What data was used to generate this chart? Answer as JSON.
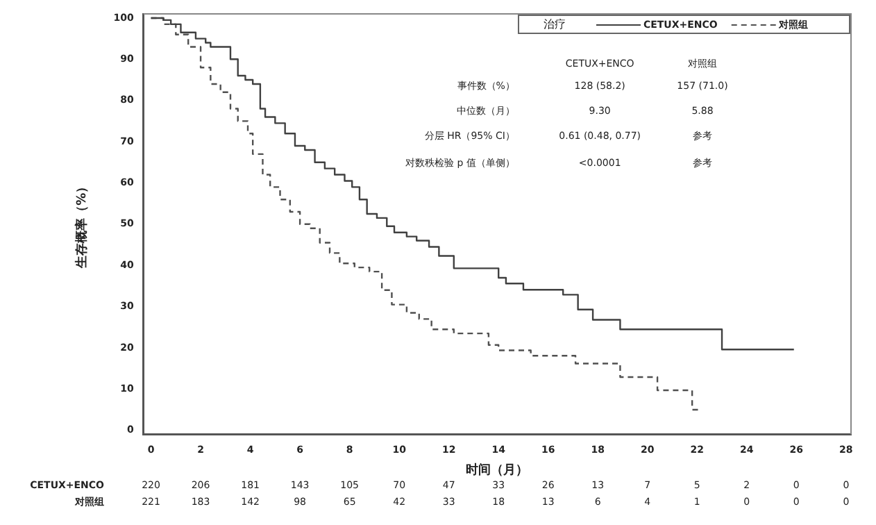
{
  "chart_data": {
    "type": "step",
    "xlabel": "时间（月）",
    "ylabel": "生存概率（%）",
    "legend_title": "治疗",
    "legend": "top right",
    "grid": false,
    "xlim": [
      -0.3,
      28.2
    ],
    "xticks": [
      0,
      2,
      4,
      6,
      8,
      10,
      12,
      14,
      16,
      18,
      20,
      22,
      24,
      26,
      28
    ],
    "ylim": [
      -1,
      101
    ],
    "yticks": [
      0,
      10,
      20,
      30,
      40,
      50,
      60,
      70,
      80,
      90,
      100
    ],
    "series": [
      {
        "name": "CETUX+ENCO",
        "color": "#404040",
        "line_style": "solid",
        "x": [
          0,
          0.5,
          0.8,
          1.2,
          1.8,
          2.2,
          2.4,
          3.2,
          3.5,
          3.8,
          4.1,
          4.4,
          4.6,
          5.0,
          5.4,
          5.8,
          6.2,
          6.6,
          7.0,
          7.4,
          7.8,
          8.1,
          8.4,
          8.7,
          9.1,
          9.5,
          9.8,
          10.3,
          10.7,
          11.2,
          11.6,
          12.2,
          14.0,
          14.3,
          15.0,
          16.6,
          17.2,
          17.5,
          17.8,
          18.9,
          23.0,
          25.9
        ],
        "values": [
          100,
          99.5,
          98.5,
          96.5,
          95,
          94,
          93,
          90,
          86,
          85,
          84,
          78,
          76,
          74.5,
          72,
          69,
          68,
          65,
          63.5,
          62,
          60.5,
          59,
          56,
          52.5,
          51.5,
          49.5,
          48,
          47,
          46,
          44.5,
          42.3,
          39.3,
          37,
          35.6,
          34.1,
          32.9,
          29.3,
          29.3,
          26.8,
          24.5,
          19.6,
          19.6
        ]
      },
      {
        "name": "对照组",
        "color": "#505050",
        "line_style": "dashed",
        "x": [
          0,
          0.5,
          1.0,
          1.5,
          2.0,
          2.4,
          2.8,
          3.2,
          3.5,
          3.9,
          4.1,
          4.5,
          4.8,
          5.2,
          5.6,
          6.0,
          6.4,
          6.8,
          7.2,
          7.6,
          8.2,
          8.8,
          9.3,
          9.7,
          10.3,
          10.8,
          11.3,
          12.2,
          13.6,
          14.0,
          15.3,
          17.1,
          18.9,
          20.4,
          21.8,
          22.1
        ],
        "values": [
          100,
          98.5,
          96,
          93,
          88,
          84,
          82,
          78,
          75,
          72,
          67,
          62,
          59,
          56,
          53,
          50,
          49,
          45.5,
          43,
          40.5,
          39.5,
          38.5,
          34,
          30.5,
          28.5,
          27,
          24.5,
          23.5,
          20.7,
          19.4,
          18.1,
          16.2,
          12.9,
          9.7,
          5.0,
          5.0
        ]
      }
    ],
    "annotations": [
      "CETUX+ENCO",
      "对照组",
      "事件数（%）",
      "128 (58.2)",
      "157 (71.0)",
      "中位数（月）",
      "9.30",
      "5.88",
      "分层 HR（95% CI）",
      "0.61 (0.48, 0.77)",
      "参考",
      "对数秩检验 p 值（单侧）",
      "<0.0001",
      "参考",
      "CETUX+ENCO",
      "220",
      "206",
      "181",
      "143",
      "105",
      "70",
      "47",
      "33",
      "26",
      "13",
      "7",
      "5",
      "2",
      "0",
      "0",
      "对照组",
      "221",
      "183",
      "142",
      "98",
      "65",
      "42",
      "33",
      "18",
      "13",
      "6",
      "4",
      "1",
      "0",
      "0",
      "0"
    ]
  }
}
